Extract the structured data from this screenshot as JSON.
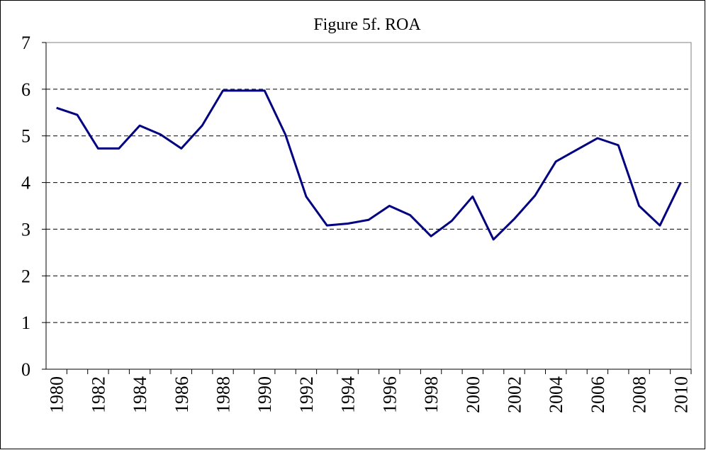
{
  "chart_data": {
    "type": "line",
    "title": "Figure 5f. ROA",
    "categories": [
      "1980",
      null,
      "1982",
      null,
      "1984",
      null,
      "1986",
      null,
      "1988",
      null,
      "1990",
      null,
      "1992",
      null,
      "1994",
      null,
      "1996",
      null,
      "1998",
      null,
      "2000",
      null,
      "2002",
      null,
      "2004",
      null,
      "2006",
      null,
      "2008",
      null,
      "2010"
    ],
    "series": [
      {
        "name": "ROA",
        "color": "#000080",
        "values": [
          5.6,
          5.45,
          4.73,
          4.73,
          5.22,
          5.03,
          4.73,
          5.22,
          5.97,
          5.97,
          5.97,
          5.03,
          3.7,
          3.08,
          3.12,
          3.2,
          3.5,
          3.3,
          2.85,
          3.18,
          3.7,
          2.78,
          3.22,
          3.72,
          4.45,
          4.7,
          4.95,
          4.8,
          3.5,
          3.08,
          4.0
        ]
      }
    ],
    "ylim": [
      0,
      7
    ],
    "yticks": [
      0,
      1,
      2,
      3,
      4,
      5,
      6,
      7
    ],
    "grid": true
  }
}
